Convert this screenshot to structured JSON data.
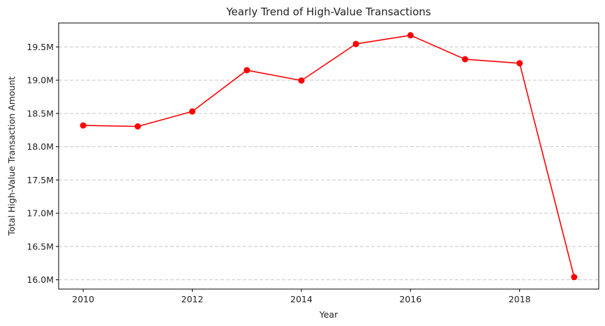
{
  "chart_data": {
    "type": "line",
    "title": "Yearly Trend of High-Value Transactions",
    "xlabel": "Year",
    "ylabel": "Total High-Value Transaction Amount",
    "x": [
      2010,
      2011,
      2012,
      2013,
      2014,
      2015,
      2016,
      2017,
      2018,
      2019
    ],
    "series": [
      {
        "values": [
          18320000,
          18305000,
          18530000,
          19150000,
          18995000,
          19545000,
          19675000,
          19315000,
          19255000,
          16040000
        ],
        "color": "#ff0000",
        "marker": "circle"
      }
    ],
    "xlim": [
      2009.55,
      2019.45
    ],
    "ylim": [
      15860000,
      19860000
    ],
    "xticks": [
      2010,
      2012,
      2014,
      2016,
      2018
    ],
    "xtick_labels": [
      "2010",
      "2012",
      "2014",
      "2016",
      "2018"
    ],
    "yticks": [
      16000000,
      16500000,
      17000000,
      17500000,
      18000000,
      18500000,
      19000000,
      19500000
    ],
    "ytick_labels": [
      "16.0M",
      "16.5M",
      "17.0M",
      "17.5M",
      "18.0M",
      "18.5M",
      "19.0M",
      "19.5M"
    ],
    "grid": "y-dashed",
    "legend": "none"
  }
}
